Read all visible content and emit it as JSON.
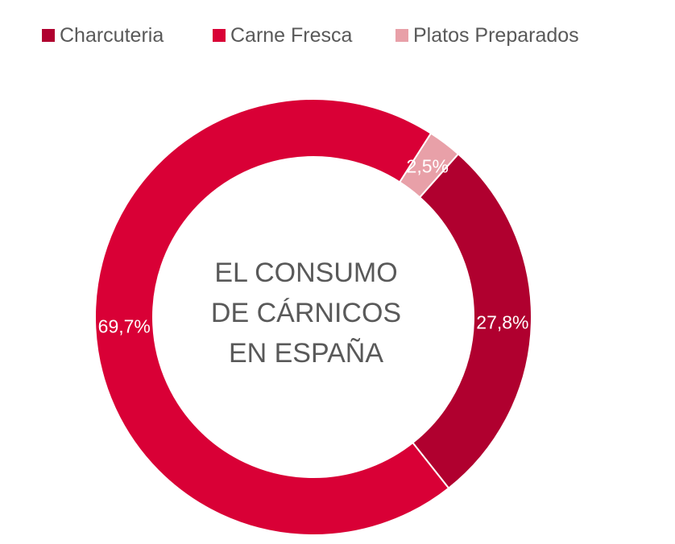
{
  "colors": {
    "charcuteria": "#B0002F",
    "carne_fresca": "#D90036",
    "platos_preparados": "#E8A0A8",
    "text": "#595959",
    "label_text": "#FFFFFF"
  },
  "center_title": {
    "line1": "EL CONSUMO",
    "line2": "DE CÁRNICOS",
    "line3": "EN ESPAÑA"
  },
  "chart_data": {
    "type": "pie",
    "variant": "doughnut",
    "title": "EL CONSUMO DE CÁRNICOS EN ESPAÑA",
    "legend_position": "top",
    "series": [
      {
        "name": "Charcuteria",
        "value": 27.8,
        "label": "27,8%",
        "color": "#B0002F"
      },
      {
        "name": "Carne Fresca",
        "value": 69.7,
        "label": "69,7%",
        "color": "#D90036"
      },
      {
        "name": "Platos Preparados",
        "value": 2.5,
        "label": "2,5%",
        "color": "#E8A0A8"
      }
    ]
  }
}
